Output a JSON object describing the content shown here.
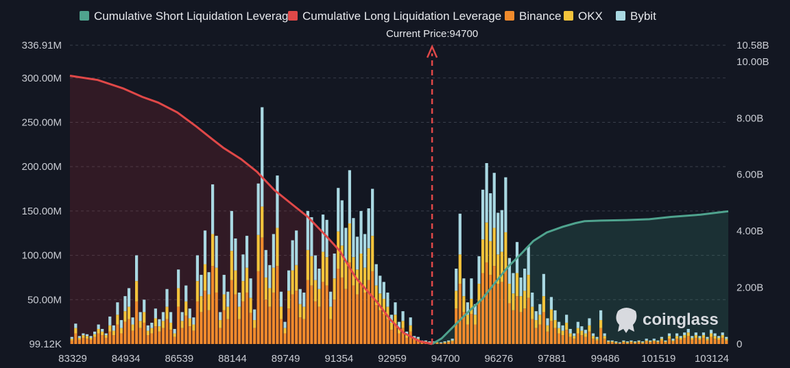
{
  "chart_data": {
    "type": "bar",
    "legend": [
      {
        "name": "Cumulative Short Liquidation Leverage",
        "color": "#4fa38e"
      },
      {
        "name": "Cumulative Long Liquidation Leverage",
        "color": "#e04848"
      },
      {
        "name": "Binance",
        "color": "#ef8a2c"
      },
      {
        "name": "OKX",
        "color": "#f3c33b"
      },
      {
        "name": "Bybit",
        "color": "#a9d8e2"
      }
    ],
    "current_price_label": "Current Price:94700",
    "current_price": 94700,
    "y_left_ticks": [
      "336.91M",
      "300.00M",
      "250.00M",
      "200.00M",
      "150.00M",
      "100.00M",
      "50.00M",
      "99.12K"
    ],
    "y_left_tick_values": [
      336.91,
      300,
      250,
      200,
      150,
      100,
      50,
      0.099
    ],
    "y_left_unit": "M",
    "y_right_ticks": [
      "10.58B",
      "10.00B",
      "8.00B",
      "6.00B",
      "4.00B",
      "2.00B",
      "0"
    ],
    "y_right_tick_values": [
      10.58,
      10,
      8,
      6,
      4,
      2,
      0
    ],
    "y_right_unit": "B",
    "x_ticks": [
      "83329",
      "84934",
      "86539",
      "88144",
      "89749",
      "91354",
      "92959",
      "94700",
      "96276",
      "97881",
      "99486",
      "101519",
      "103124"
    ],
    "bar_groups_M": [
      [
        4,
        2,
        2
      ],
      [
        12,
        6,
        5
      ],
      [
        5,
        2,
        2
      ],
      [
        7,
        3,
        2
      ],
      [
        6,
        3,
        2
      ],
      [
        5,
        2,
        2
      ],
      [
        8,
        3,
        3
      ],
      [
        12,
        5,
        5
      ],
      [
        10,
        4,
        3
      ],
      [
        7,
        3,
        2
      ],
      [
        14,
        7,
        10
      ],
      [
        10,
        5,
        6
      ],
      [
        22,
        11,
        14
      ],
      [
        12,
        6,
        9
      ],
      [
        25,
        12,
        17
      ],
      [
        28,
        14,
        21
      ],
      [
        15,
        7,
        8
      ],
      [
        48,
        23,
        29
      ],
      [
        18,
        8,
        10
      ],
      [
        24,
        12,
        14
      ],
      [
        10,
        5,
        6
      ],
      [
        12,
        6,
        6
      ],
      [
        20,
        9,
        11
      ],
      [
        14,
        6,
        8
      ],
      [
        18,
        8,
        10
      ],
      [
        28,
        14,
        20
      ],
      [
        16,
        8,
        12
      ],
      [
        8,
        4,
        5
      ],
      [
        42,
        21,
        21
      ],
      [
        18,
        8,
        10
      ],
      [
        32,
        16,
        18
      ],
      [
        20,
        9,
        11
      ],
      [
        15,
        7,
        8
      ],
      [
        48,
        23,
        29
      ],
      [
        36,
        18,
        24
      ],
      [
        60,
        30,
        38
      ],
      [
        38,
        18,
        25
      ],
      [
        88,
        36,
        56
      ],
      [
        58,
        28,
        36
      ],
      [
        18,
        9,
        9
      ],
      [
        38,
        18,
        22
      ],
      [
        28,
        14,
        17
      ],
      [
        72,
        33,
        45
      ],
      [
        56,
        27,
        36
      ],
      [
        28,
        14,
        16
      ],
      [
        48,
        23,
        30
      ],
      [
        58,
        28,
        36
      ],
      [
        35,
        17,
        22
      ],
      [
        18,
        9,
        12
      ],
      [
        82,
        41,
        58
      ],
      [
        120,
        35,
        112
      ],
      [
        50,
        25,
        31
      ],
      [
        42,
        21,
        26
      ],
      [
        58,
        28,
        38
      ],
      [
        88,
        43,
        59
      ],
      [
        28,
        14,
        17
      ],
      [
        12,
        6,
        7
      ],
      [
        40,
        20,
        23
      ],
      [
        56,
        27,
        34
      ],
      [
        60,
        29,
        39
      ],
      [
        30,
        15,
        17
      ],
      [
        28,
        14,
        16
      ],
      [
        72,
        34,
        44
      ],
      [
        66,
        33,
        44
      ],
      [
        48,
        24,
        28
      ],
      [
        42,
        20,
        23
      ],
      [
        70,
        34,
        42
      ],
      [
        66,
        32,
        42
      ],
      [
        28,
        14,
        17
      ],
      [
        50,
        24,
        28
      ],
      [
        85,
        42,
        49
      ],
      [
        75,
        36,
        51
      ],
      [
        62,
        30,
        39
      ],
      [
        92,
        44,
        60
      ],
      [
        66,
        32,
        44
      ],
      [
        56,
        28,
        37
      ],
      [
        68,
        34,
        48
      ],
      [
        58,
        28,
        38
      ],
      [
        72,
        36,
        45
      ],
      [
        82,
        40,
        53
      ],
      [
        44,
        22,
        24
      ],
      [
        38,
        19,
        20
      ],
      [
        34,
        17,
        19
      ],
      [
        28,
        14,
        16
      ],
      [
        16,
        8,
        9
      ],
      [
        22,
        11,
        14
      ],
      [
        12,
        6,
        7
      ],
      [
        18,
        8,
        11
      ],
      [
        7,
        3,
        4
      ],
      [
        14,
        7,
        9
      ],
      [
        5,
        2,
        2
      ],
      [
        4,
        2,
        2
      ],
      [
        2,
        1,
        1
      ],
      [
        2,
        1,
        1
      ],
      [
        1,
        1,
        1
      ],
      [
        1,
        1,
        1
      ],
      [
        1,
        1,
        0
      ],
      [
        1,
        0,
        1
      ],
      [
        1,
        1,
        1
      ],
      [
        2,
        1,
        1
      ],
      [
        3,
        1,
        2
      ],
      [
        40,
        20,
        25
      ],
      [
        68,
        33,
        46
      ],
      [
        36,
        18,
        20
      ],
      [
        22,
        11,
        14
      ],
      [
        34,
        17,
        23
      ],
      [
        22,
        11,
        12
      ],
      [
        46,
        22,
        31
      ],
      [
        80,
        38,
        56
      ],
      [
        92,
        45,
        67
      ],
      [
        78,
        38,
        54
      ],
      [
        88,
        43,
        62
      ],
      [
        68,
        33,
        47
      ],
      [
        70,
        34,
        47
      ],
      [
        84,
        42,
        62
      ],
      [
        46,
        22,
        29
      ],
      [
        38,
        19,
        23
      ],
      [
        54,
        26,
        35
      ],
      [
        36,
        18,
        21
      ],
      [
        40,
        20,
        25
      ],
      [
        52,
        26,
        32
      ],
      [
        28,
        14,
        16
      ],
      [
        18,
        9,
        10
      ],
      [
        22,
        11,
        12
      ],
      [
        36,
        18,
        25
      ],
      [
        14,
        7,
        8
      ],
      [
        26,
        13,
        14
      ],
      [
        18,
        9,
        11
      ],
      [
        12,
        6,
        7
      ],
      [
        10,
        5,
        6
      ],
      [
        16,
        8,
        9
      ],
      [
        8,
        4,
        5
      ],
      [
        6,
        3,
        3
      ],
      [
        12,
        6,
        7
      ],
      [
        10,
        5,
        5
      ],
      [
        8,
        4,
        4
      ],
      [
        14,
        7,
        8
      ],
      [
        6,
        3,
        3
      ],
      [
        4,
        2,
        2
      ],
      [
        18,
        9,
        11
      ],
      [
        6,
        3,
        3
      ],
      [
        2,
        1,
        1
      ],
      [
        2,
        1,
        1
      ],
      [
        1,
        1,
        1
      ],
      [
        1,
        0,
        1
      ],
      [
        2,
        1,
        1
      ],
      [
        1,
        1,
        1
      ],
      [
        2,
        1,
        1
      ],
      [
        1,
        1,
        1
      ],
      [
        2,
        1,
        1
      ],
      [
        1,
        1,
        1
      ],
      [
        3,
        1,
        2
      ],
      [
        2,
        1,
        1
      ],
      [
        3,
        1,
        2
      ],
      [
        2,
        1,
        1
      ],
      [
        4,
        2,
        2
      ],
      [
        2,
        1,
        1
      ],
      [
        6,
        3,
        3
      ],
      [
        3,
        1,
        2
      ],
      [
        6,
        3,
        3
      ],
      [
        5,
        2,
        2
      ],
      [
        7,
        3,
        3
      ],
      [
        9,
        4,
        4
      ],
      [
        5,
        2,
        2
      ],
      [
        7,
        3,
        3
      ],
      [
        5,
        2,
        2
      ],
      [
        7,
        3,
        3
      ],
      [
        4,
        2,
        2
      ],
      [
        8,
        4,
        4
      ],
      [
        6,
        3,
        3
      ],
      [
        5,
        2,
        2
      ],
      [
        7,
        3,
        3
      ],
      [
        4,
        2,
        2
      ]
    ],
    "long_curve_B": [
      [
        83329,
        9.5
      ],
      [
        84200,
        9.35
      ],
      [
        85000,
        9.05
      ],
      [
        85600,
        8.75
      ],
      [
        86100,
        8.55
      ],
      [
        86700,
        8.2
      ],
      [
        87300,
        7.7
      ],
      [
        87800,
        7.25
      ],
      [
        88144,
        6.95
      ],
      [
        88700,
        6.55
      ],
      [
        89200,
        6.1
      ],
      [
        89749,
        5.45
      ],
      [
        90300,
        4.95
      ],
      [
        90800,
        4.5
      ],
      [
        91354,
        3.85
      ],
      [
        91800,
        3.3
      ],
      [
        92300,
        2.35
      ],
      [
        92959,
        1.5
      ],
      [
        93400,
        0.85
      ],
      [
        93800,
        0.4
      ],
      [
        94300,
        0.1
      ],
      [
        94700,
        0
      ]
    ],
    "short_curve_B": [
      [
        94700,
        0
      ],
      [
        95000,
        0.2
      ],
      [
        95400,
        0.65
      ],
      [
        95800,
        1.1
      ],
      [
        96276,
        1.6
      ],
      [
        96700,
        2.2
      ],
      [
        97100,
        2.75
      ],
      [
        97500,
        3.2
      ],
      [
        97881,
        3.65
      ],
      [
        98300,
        3.95
      ],
      [
        98800,
        4.15
      ],
      [
        99200,
        4.28
      ],
      [
        99486,
        4.35
      ],
      [
        100000,
        4.37
      ],
      [
        100800,
        4.39
      ],
      [
        101519,
        4.42
      ],
      [
        102200,
        4.5
      ],
      [
        103124,
        4.58
      ],
      [
        103700,
        4.66
      ],
      [
        104000,
        4.7
      ]
    ],
    "x_domain": [
      83329,
      104000
    ],
    "y_left_range": [
      0,
      336.91
    ],
    "y_right_range": [
      0,
      10.58
    ]
  },
  "watermark": {
    "text": "coinglass"
  }
}
